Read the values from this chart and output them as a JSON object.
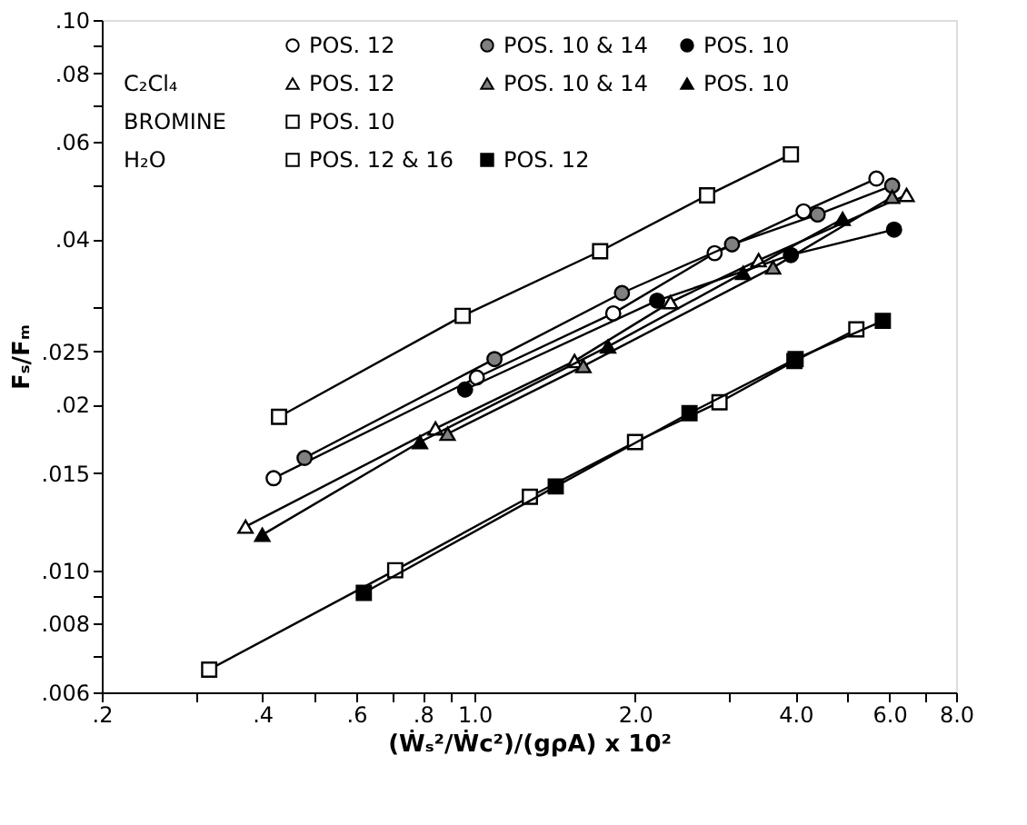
{
  "chart_data": {
    "type": "line",
    "xlabel": "(Ẇₛ²/Ẇc²)/(gρA) x 10²",
    "ylabel": "Fₛ/Fₘ",
    "log": "xy",
    "grid": false,
    "legend": "top left",
    "line_style": "solid",
    "xlim": [
      0.2,
      8.0
    ],
    "ylim": [
      0.006,
      0.1
    ],
    "xticks": [
      {
        "value": 0.2,
        "label": ".2"
      },
      {
        "value": 0.3,
        "label": null
      },
      {
        "value": 0.4,
        "label": ".4"
      },
      {
        "value": 0.5,
        "label": null
      },
      {
        "value": 0.6,
        "label": ".6"
      },
      {
        "value": 0.7,
        "label": null
      },
      {
        "value": 0.8,
        "label": ".8"
      },
      {
        "value": 0.9,
        "label": null
      },
      {
        "value": 1.0,
        "label": "1.0"
      },
      {
        "value": 2.0,
        "label": "2.0"
      },
      {
        "value": 3.0,
        "label": null
      },
      {
        "value": 4.0,
        "label": "4.0"
      },
      {
        "value": 5.0,
        "label": null
      },
      {
        "value": 6.0,
        "label": "6.0"
      },
      {
        "value": 7.0,
        "label": null
      },
      {
        "value": 8.0,
        "label": "8.0"
      }
    ],
    "yticks": [
      {
        "value": 0.006,
        "label": ".006"
      },
      {
        "value": 0.007,
        "label": null
      },
      {
        "value": 0.008,
        "label": ".008"
      },
      {
        "value": 0.009,
        "label": null
      },
      {
        "value": 0.01,
        "label": ".010"
      },
      {
        "value": 0.015,
        "label": ".015"
      },
      {
        "value": 0.02,
        "label": ".02"
      },
      {
        "value": 0.025,
        "label": ".025"
      },
      {
        "value": 0.03,
        "label": null
      },
      {
        "value": 0.04,
        "label": ".04"
      },
      {
        "value": 0.05,
        "label": null
      },
      {
        "value": 0.06,
        "label": ".06"
      },
      {
        "value": 0.07,
        "label": null
      },
      {
        "value": 0.08,
        "label": ".08"
      },
      {
        "value": 0.09,
        "label": null
      },
      {
        "value": 0.1,
        "label": ".10"
      }
    ],
    "annotations": [
      "C₂Cl₄",
      "BROMINE",
      "H₂O"
    ],
    "series": [
      {
        "name": "POS. 12",
        "color": "#ffffff",
        "marker": "circle",
        "x": [
          0.42,
          1.01,
          1.82,
          2.82,
          4.14,
          5.67
        ],
        "values": [
          0.0147,
          0.0224,
          0.0293,
          0.0377,
          0.0449,
          0.0515
        ]
      },
      {
        "name": "POS. 10 & 14",
        "color": "#808080",
        "marker": "circle",
        "x": [
          0.48,
          1.09,
          1.89,
          3.04,
          4.4,
          6.07
        ],
        "values": [
          0.016,
          0.0242,
          0.0319,
          0.0391,
          0.0443,
          0.05
        ]
      },
      {
        "name": "POS. 10",
        "color": "#000000",
        "marker": "circle",
        "x": [
          0.96,
          2.2,
          3.92,
          6.12
        ],
        "values": [
          0.0213,
          0.0309,
          0.0374,
          0.0416
        ]
      },
      {
        "name": "POS. 12",
        "color": "#ffffff",
        "marker": "triangle",
        "x": [
          0.372,
          0.845,
          1.54,
          2.33,
          3.41,
          6.46
        ],
        "values": [
          0.012,
          0.0181,
          0.024,
          0.0307,
          0.0366,
          0.0481
        ]
      },
      {
        "name": "POS. 10 & 14",
        "color": "#808080",
        "marker": "triangle",
        "x": [
          0.89,
          1.6,
          3.63,
          6.07
        ],
        "values": [
          0.0177,
          0.0235,
          0.0355,
          0.0477
        ]
      },
      {
        "name": "POS. 10",
        "color": "#000000",
        "marker": "triangle",
        "x": [
          0.4,
          0.79,
          1.78,
          3.19,
          4.9
        ],
        "values": [
          0.0116,
          0.0171,
          0.0255,
          0.0347,
          0.0435
        ]
      },
      {
        "name": "POS. 10",
        "color": "#ffffff",
        "marker": "square",
        "x": [
          0.43,
          0.95,
          1.72,
          2.73,
          3.92
        ],
        "values": [
          0.019,
          0.029,
          0.038,
          0.048,
          0.057
        ]
      },
      {
        "name": "POS. 12 & 16",
        "color": "#ffffff",
        "marker": "square",
        "x": [
          0.318,
          0.71,
          1.27,
          2.0,
          2.88,
          3.98,
          5.2
        ],
        "values": [
          0.0066,
          0.01,
          0.0136,
          0.0171,
          0.0202,
          0.024,
          0.0274
        ]
      },
      {
        "name": "POS. 12",
        "color": "#000000",
        "marker": "square",
        "x": [
          0.62,
          1.42,
          2.53,
          4.0,
          5.83
        ],
        "values": [
          0.0091,
          0.0142,
          0.0193,
          0.0242,
          0.0284
        ]
      }
    ]
  }
}
